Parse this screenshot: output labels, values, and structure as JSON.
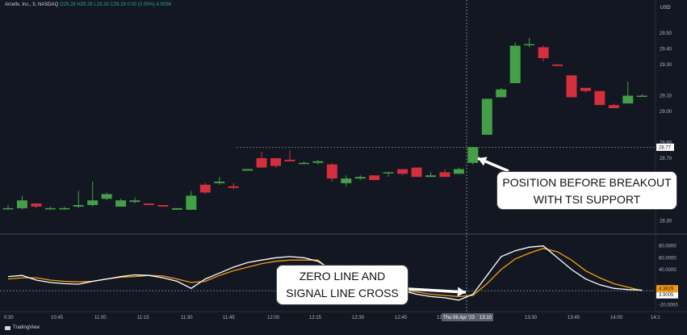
{
  "header": {
    "symbol": "Arcellx, Inc., 5, NASDAQ",
    "o": "O29.28",
    "h": "H29.28",
    "l": "L29.28",
    "c": "C29.28",
    "chg": "0.00 (0.00%)",
    "vol": "4.905K"
  },
  "currency": "USD",
  "price_ticks": [
    "29.50",
    "29.40",
    "29.30",
    "29.10",
    "29.00",
    "28.80",
    "28.70",
    "28.60",
    "28.30"
  ],
  "price_tag": "28.77",
  "tsi_ticks": [
    "80.0000",
    "60.0000",
    "40.0000",
    "3.9005",
    "-20.0000"
  ],
  "tsi_tag": "4.3629",
  "time_ticks": [
    "0:30",
    "10:45",
    "11:00",
    "11:15",
    "11:30",
    "11:45",
    "12:00",
    "12:15",
    "12:30",
    "12:45",
    "13:0",
    "13:30",
    "13:45",
    "14:00",
    "14:1"
  ],
  "crosshair_label": "Thu 06 Apr '23",
  "crosshair_time": "13:10",
  "annotations": {
    "breakout_line1": "POSITION BEFORE BREAKOUT",
    "breakout_line2": "WITH TSI SUPPORT",
    "cross_line1": "ZERO LINE AND",
    "cross_line2": "SIGNAL LINE CROSS"
  },
  "brand": "TradingView",
  "colors": {
    "up": "#43a047",
    "down": "#d32f3c",
    "tsi": "#ffffff",
    "signal": "#f39c12",
    "bg": "#131722"
  },
  "chart_data": {
    "type": "candlestick",
    "candles": [
      {
        "o": 28.38,
        "h": 28.4,
        "l": 28.37,
        "c": 28.38
      },
      {
        "o": 28.38,
        "h": 28.46,
        "l": 28.37,
        "c": 28.43
      },
      {
        "o": 28.41,
        "h": 28.41,
        "l": 28.38,
        "c": 28.39
      },
      {
        "o": 28.38,
        "h": 28.39,
        "l": 28.37,
        "c": 28.38
      },
      {
        "o": 28.38,
        "h": 28.39,
        "l": 28.37,
        "c": 28.38
      },
      {
        "o": 28.39,
        "h": 28.49,
        "l": 28.38,
        "c": 28.4
      },
      {
        "o": 28.4,
        "h": 28.55,
        "l": 28.39,
        "c": 28.43
      },
      {
        "o": 28.44,
        "h": 28.48,
        "l": 28.43,
        "c": 28.47
      },
      {
        "o": 28.39,
        "h": 28.44,
        "l": 28.39,
        "c": 28.43
      },
      {
        "o": 28.42,
        "h": 28.45,
        "l": 28.41,
        "c": 28.43
      },
      {
        "o": 28.41,
        "h": 28.41,
        "l": 28.4,
        "c": 28.4
      },
      {
        "o": 28.4,
        "h": 28.4,
        "l": 28.39,
        "c": 28.39
      },
      {
        "o": 28.37,
        "h": 28.38,
        "l": 28.37,
        "c": 28.38
      },
      {
        "o": 28.37,
        "h": 28.49,
        "l": 28.37,
        "c": 28.46
      },
      {
        "o": 28.53,
        "h": 28.54,
        "l": 28.47,
        "c": 28.48
      },
      {
        "o": 28.54,
        "h": 28.58,
        "l": 28.53,
        "c": 28.55
      },
      {
        "o": 28.52,
        "h": 28.54,
        "l": 28.5,
        "c": 28.51
      },
      {
        "o": 28.62,
        "h": 28.63,
        "l": 28.62,
        "c": 28.63
      },
      {
        "o": 28.7,
        "h": 28.74,
        "l": 28.64,
        "c": 28.64
      },
      {
        "o": 28.7,
        "h": 28.7,
        "l": 28.64,
        "c": 28.65
      },
      {
        "o": 28.69,
        "h": 28.75,
        "l": 28.68,
        "c": 28.68
      },
      {
        "o": 28.67,
        "h": 28.68,
        "l": 28.66,
        "c": 28.67
      },
      {
        "o": 28.67,
        "h": 28.69,
        "l": 28.66,
        "c": 28.68
      },
      {
        "o": 28.66,
        "h": 28.67,
        "l": 28.55,
        "c": 28.57
      },
      {
        "o": 28.54,
        "h": 28.59,
        "l": 28.52,
        "c": 28.57
      },
      {
        "o": 28.57,
        "h": 28.59,
        "l": 28.56,
        "c": 28.58
      },
      {
        "o": 28.59,
        "h": 28.59,
        "l": 28.56,
        "c": 28.56
      },
      {
        "o": 28.61,
        "h": 28.61,
        "l": 28.58,
        "c": 28.61
      },
      {
        "o": 28.63,
        "h": 28.63,
        "l": 28.59,
        "c": 28.6
      },
      {
        "o": 28.64,
        "h": 28.64,
        "l": 28.58,
        "c": 28.58
      },
      {
        "o": 28.58,
        "h": 28.61,
        "l": 28.58,
        "c": 28.59
      },
      {
        "o": 28.61,
        "h": 28.63,
        "l": 28.58,
        "c": 28.58
      },
      {
        "o": 28.6,
        "h": 28.64,
        "l": 28.6,
        "c": 28.63
      },
      {
        "o": 28.67,
        "h": 28.77,
        "l": 28.66,
        "c": 28.77
      },
      {
        "o": 28.85,
        "h": 29.08,
        "l": 28.85,
        "c": 29.08
      },
      {
        "o": 29.09,
        "h": 29.15,
        "l": 29.09,
        "c": 29.14
      },
      {
        "o": 29.18,
        "h": 29.44,
        "l": 29.18,
        "c": 29.42
      },
      {
        "o": 29.43,
        "h": 29.47,
        "l": 29.41,
        "c": 29.43
      },
      {
        "o": 29.41,
        "h": 29.42,
        "l": 29.32,
        "c": 29.34
      },
      {
        "o": 29.3,
        "h": 29.3,
        "l": 29.29,
        "c": 29.29
      },
      {
        "o": 29.23,
        "h": 29.23,
        "l": 29.09,
        "c": 29.09
      },
      {
        "o": 29.15,
        "h": 29.15,
        "l": 29.12,
        "c": 29.13
      },
      {
        "o": 29.13,
        "h": 29.13,
        "l": 29.04,
        "c": 29.04
      },
      {
        "o": 29.04,
        "h": 29.05,
        "l": 29.02,
        "c": 29.02
      },
      {
        "o": 29.05,
        "h": 29.19,
        "l": 29.05,
        "c": 29.1
      },
      {
        "o": 29.1,
        "h": 29.11,
        "l": 29.1,
        "c": 29.1
      }
    ],
    "price_range": [
      28.24,
      29.64
    ],
    "tsi": {
      "range": [
        -26,
        92
      ],
      "tsi_line": [
        28,
        30,
        22,
        18,
        16,
        15,
        20,
        24,
        28,
        31,
        30,
        26,
        20,
        8,
        24,
        34,
        44,
        52,
        56,
        60,
        62,
        60,
        54,
        40,
        26,
        12,
        8,
        10,
        4,
        -2,
        -6,
        -8,
        -12,
        -2,
        30,
        62,
        72,
        78,
        80,
        60,
        40,
        24,
        14,
        8,
        6,
        5
      ],
      "signal_line": [
        24,
        26,
        26,
        22,
        20,
        19,
        20,
        24,
        27,
        28,
        30,
        29,
        24,
        18,
        20,
        30,
        38,
        44,
        50,
        54,
        56,
        56,
        56,
        36,
        24,
        14,
        8,
        6,
        4,
        2,
        -2,
        -4,
        -6,
        -4,
        16,
        40,
        58,
        68,
        76,
        70,
        56,
        38,
        26,
        16,
        10,
        4
      ]
    }
  }
}
